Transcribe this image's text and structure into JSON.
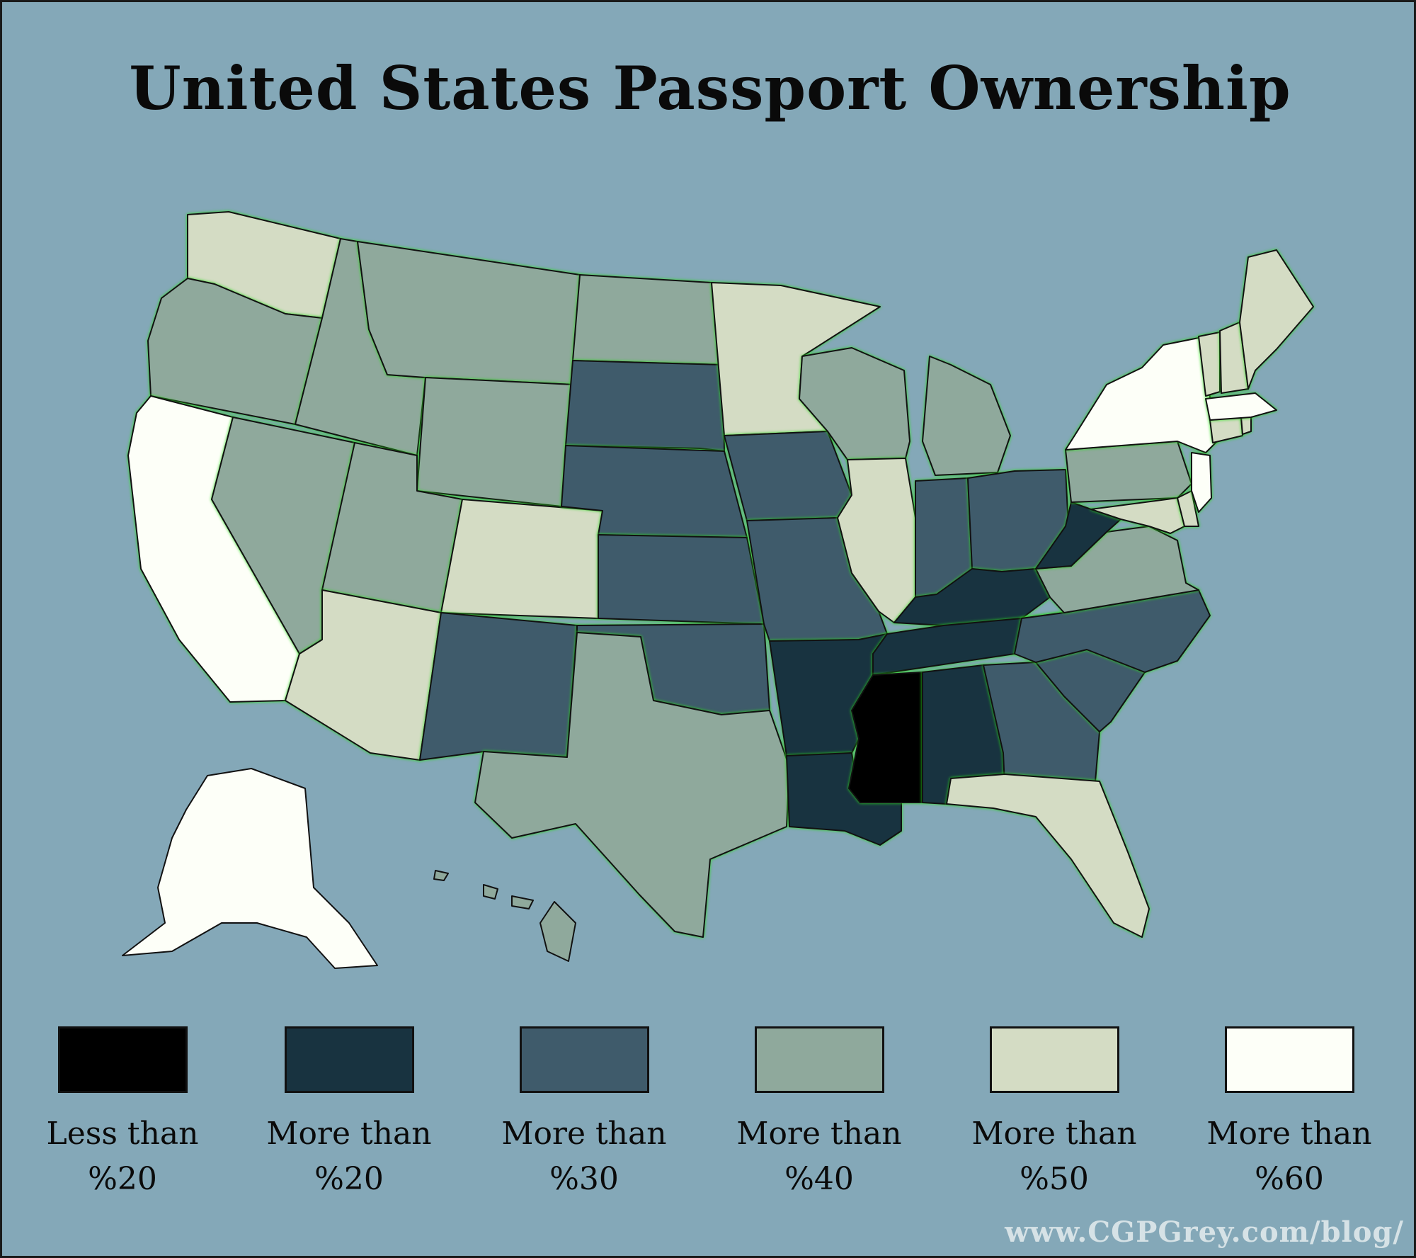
{
  "title": "United States Passport Ownership",
  "credit": "www.CGPGrey.com/blog/",
  "colors": {
    "background": "#84a8b8",
    "outline_highlight": "#2bdc1d",
    "lt20": "#000000",
    "gt20": "#183340",
    "gt30": "#3f5b6b",
    "gt40": "#8fa99c",
    "gt50": "#d4dcc4",
    "gt60": "#fdfff8"
  },
  "legend": [
    {
      "key": "lt20",
      "line1": "Less than",
      "line2": "%20"
    },
    {
      "key": "gt20",
      "line1": "More than",
      "line2": "%20"
    },
    {
      "key": "gt30",
      "line1": "More than",
      "line2": "%30"
    },
    {
      "key": "gt40",
      "line1": "More than",
      "line2": "%40"
    },
    {
      "key": "gt50",
      "line1": "More than",
      "line2": "%50"
    },
    {
      "key": "gt60",
      "line1": "More than",
      "line2": "%60"
    }
  ],
  "chart_data": {
    "type": "choropleth",
    "states": {
      "washington": "gt50",
      "oregon": "gt40",
      "california": "gt60",
      "idaho": "gt40",
      "nevada": "gt40",
      "montana": "gt40",
      "wyoming": "gt40",
      "utah": "gt40",
      "colorado": "gt50",
      "arizona": "gt50",
      "new-mexico": "gt30",
      "north-dakota": "gt40",
      "south-dakota": "gt30",
      "nebraska": "gt30",
      "kansas": "gt30",
      "oklahoma": "gt30",
      "texas": "gt40",
      "minnesota": "gt50",
      "iowa": "gt30",
      "missouri": "gt30",
      "arkansas": "gt20",
      "louisiana": "gt20",
      "wisconsin": "gt40",
      "illinois": "gt50",
      "michigan": "gt40",
      "indiana": "gt30",
      "ohio": "gt30",
      "kentucky": "gt20",
      "tennessee": "gt20",
      "mississippi": "lt20",
      "alabama": "gt20",
      "georgia": "gt30",
      "florida": "gt50",
      "south-carolina": "gt30",
      "north-carolina": "gt30",
      "virginia": "gt40",
      "west-virginia": "gt20",
      "pennsylvania": "gt40",
      "new-york": "gt60",
      "maryland": "gt50",
      "delaware": "gt50",
      "new-jersey": "gt60",
      "connecticut": "gt50",
      "rhode-island": "gt50",
      "massachusetts": "gt60",
      "vermont": "gt50",
      "new-hampshire": "gt50",
      "maine": "gt50",
      "alaska": "gt60",
      "hawaii": "gt40"
    }
  }
}
